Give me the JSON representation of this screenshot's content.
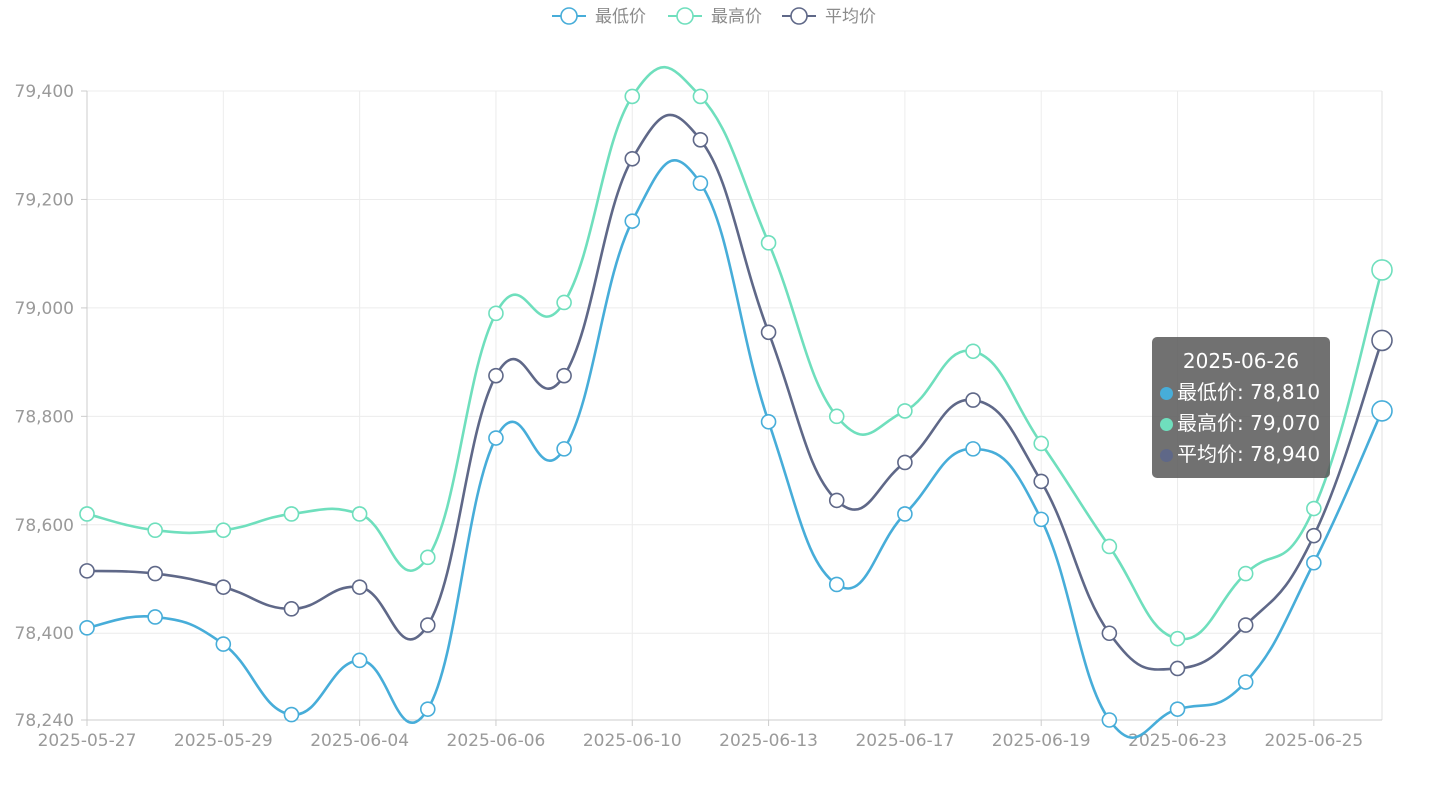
{
  "chart_data": {
    "type": "line",
    "x": [
      "2025-05-27",
      "2025-05-28",
      "2025-05-29",
      "2025-05-30",
      "2025-06-04",
      "2025-06-05",
      "2025-06-06",
      "2025-06-09",
      "2025-06-10",
      "2025-06-11",
      "2025-06-13",
      "2025-06-16",
      "2025-06-17",
      "2025-06-18",
      "2025-06-19",
      "2025-06-20",
      "2025-06-23",
      "2025-06-24",
      "2025-06-25",
      "2025-06-26"
    ],
    "x_tick_labels": [
      "2025-05-27",
      "2025-05-29",
      "2025-06-04",
      "2025-06-06",
      "2025-06-10",
      "2025-06-13",
      "2025-06-17",
      "2025-06-19",
      "2025-06-23",
      "2025-06-25"
    ],
    "ylim": [
      78240,
      79400
    ],
    "y_ticks": [
      78240,
      78400,
      78600,
      78800,
      79000,
      79200,
      79400
    ],
    "y_tick_labels": [
      "78,240",
      "78,400",
      "78,600",
      "78,800",
      "79,000",
      "79,200",
      "79,400"
    ],
    "grid": true,
    "legend_position": "top-center",
    "series": [
      {
        "name": "最低价",
        "color": "#47add9",
        "values": [
          78410,
          78430,
          78380,
          78250,
          78350,
          78260,
          78760,
          78740,
          79160,
          79230,
          78790,
          78490,
          78620,
          78740,
          78610,
          78240,
          78260,
          78310,
          78530,
          78810
        ]
      },
      {
        "name": "最高价",
        "color": "#6fdfbd",
        "values": [
          78620,
          78590,
          78590,
          78620,
          78620,
          78540,
          78990,
          79010,
          79390,
          79390,
          79120,
          78800,
          78810,
          78920,
          78750,
          78560,
          78390,
          78510,
          78630,
          79070
        ]
      },
      {
        "name": "平均价",
        "color": "#5f6888",
        "values": [
          78515,
          78510,
          78485,
          78445,
          78485,
          78415,
          78875,
          78875,
          79275,
          79310,
          78955,
          78645,
          78715,
          78830,
          78680,
          78400,
          78335,
          78415,
          78580,
          78940
        ]
      }
    ]
  },
  "tooltip": {
    "title": "2025-06-26",
    "rows": [
      {
        "label": "最低价: 78,810",
        "color": "#47add9"
      },
      {
        "label": "最高价: 79,070",
        "color": "#6fdfbd"
      },
      {
        "label": "平均价: 78,940",
        "color": "#5f6888"
      }
    ]
  }
}
